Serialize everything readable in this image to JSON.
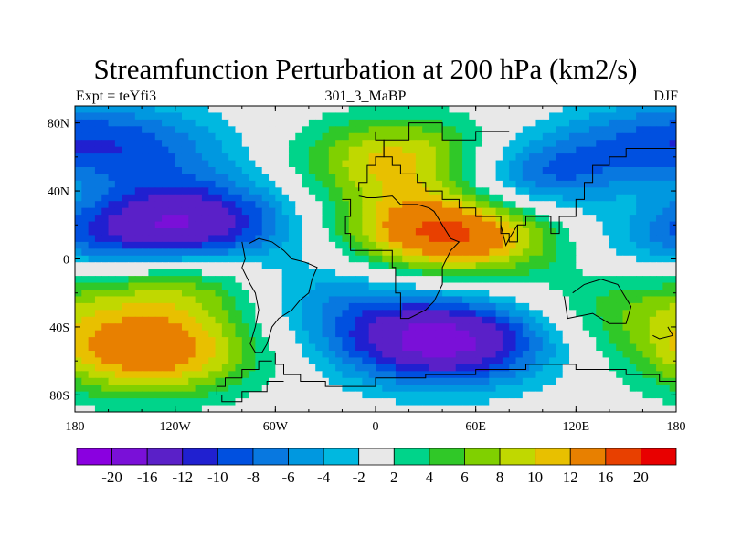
{
  "chart_data": {
    "type": "heatmap",
    "title": "Streamfunction Perturbation at 200 hPa (km2/s)",
    "left_label": "Expt = teYfi3",
    "center_label": "301_3_MaBP",
    "right_label": "DJF",
    "x": {
      "range": [
        -180,
        180
      ],
      "ticks": [
        -180,
        -120,
        -60,
        0,
        60,
        120,
        180
      ],
      "tick_labels": [
        "180",
        "120W",
        "60W",
        "0",
        "60E",
        "120E",
        "180"
      ]
    },
    "y": {
      "range": [
        -90,
        90
      ],
      "ticks": [
        80,
        40,
        0,
        -40,
        -80
      ],
      "tick_labels": [
        "80N",
        "40N",
        "0",
        "40S",
        "80S"
      ]
    },
    "colorbar": {
      "levels": [
        -20,
        -16,
        -12,
        -10,
        -8,
        -6,
        -4,
        -2,
        2,
        4,
        6,
        8,
        10,
        12,
        16,
        20
      ],
      "labels": [
        "-20",
        "-16",
        "-12",
        "-10",
        "-8",
        "-6",
        "-4",
        "-2",
        "2",
        "4",
        "6",
        "8",
        "10",
        "12",
        "16",
        "20"
      ],
      "colors": [
        "#8a00e0",
        "#7a10d8",
        "#5a20c8",
        "#2020d0",
        "#0050e0",
        "#0878e0",
        "#0098e0",
        "#00b8e0",
        "#e8e8e8",
        "#00d48a",
        "#30c828",
        "#80d000",
        "#c0d800",
        "#e8c000",
        "#e88000",
        "#e84000",
        "#e80000"
      ]
    },
    "features": [
      {
        "name": "north-atlantic-pacific-low",
        "lon": 170,
        "lat": 62,
        "value": -4
      },
      {
        "name": "north-pacific-low-west",
        "lon": -135,
        "lat": 62,
        "value": -5
      },
      {
        "name": "arctic-low-east",
        "lon": 180,
        "lat": 75,
        "value": -4
      },
      {
        "name": "eurasia-high",
        "lon": 20,
        "lat": 58,
        "value": 12
      },
      {
        "name": "central-asia-low",
        "lon": 95,
        "lat": 47,
        "value": -12
      },
      {
        "name": "tropical-pacific-low",
        "lon": -115,
        "lat": 20,
        "value": -16
      },
      {
        "name": "north-africa-high",
        "lon": 45,
        "lat": 16,
        "value": 18
      },
      {
        "name": "east-asia-high",
        "lon": 160,
        "lat": 38,
        "value": 6
      },
      {
        "name": "south-america-low",
        "lon": -40,
        "lat": -20,
        "value": -6
      },
      {
        "name": "southern-ocean-low",
        "lon": 40,
        "lat": -48,
        "value": -18
      },
      {
        "name": "south-pacific-high",
        "lon": -135,
        "lat": -55,
        "value": 14
      },
      {
        "name": "south-pacific-high-2",
        "lon": -110,
        "lat": -15,
        "value": 9
      },
      {
        "name": "australia-high",
        "lon": 150,
        "lat": -30,
        "value": 5
      },
      {
        "name": "west-pacific-low",
        "lon": 175,
        "lat": 15,
        "value": -6
      }
    ]
  }
}
